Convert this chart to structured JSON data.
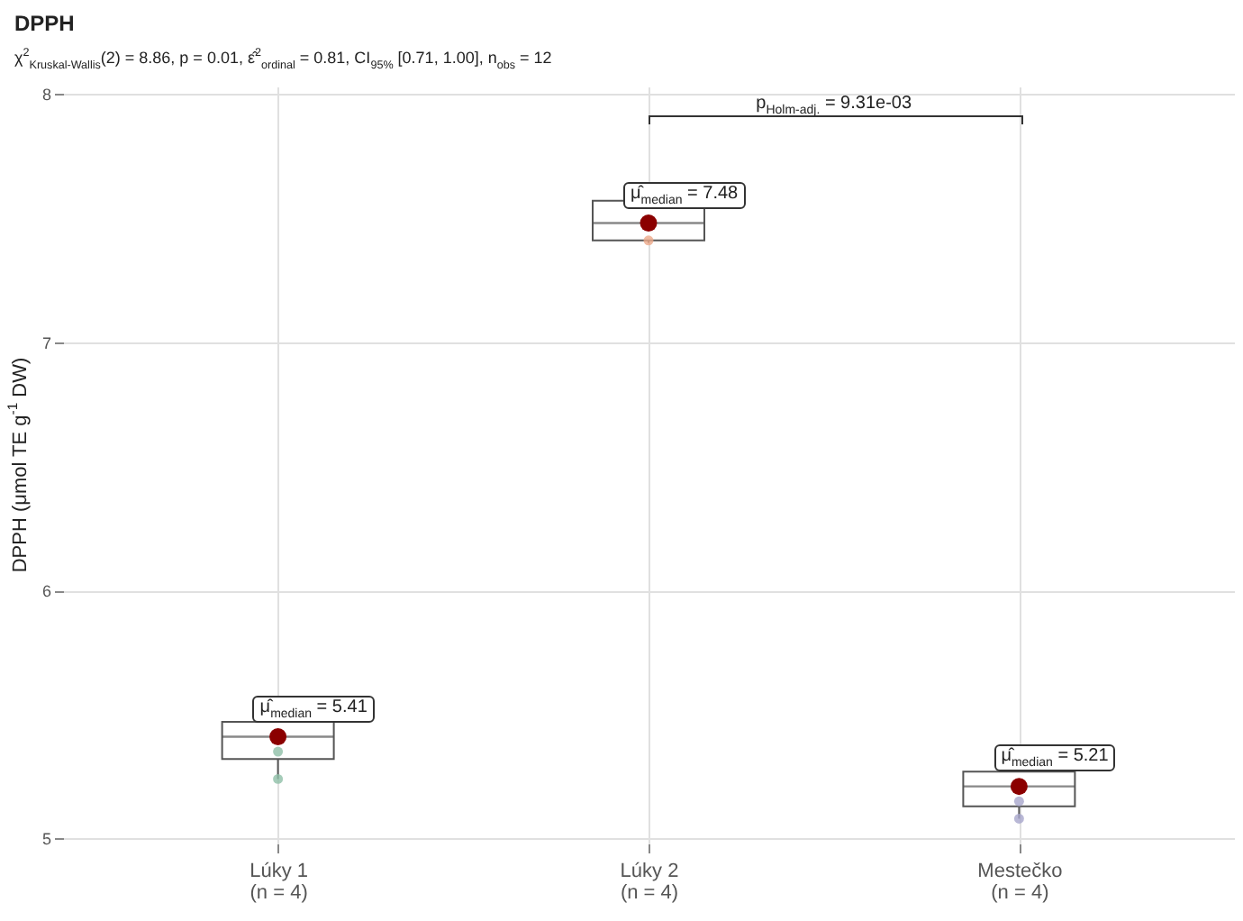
{
  "chart_data": {
    "type": "box",
    "title": "DPPH",
    "subtitle": "χ$^{2}$$_{Kruskal-Wallis}$(2) = 8.86, p = 0.01, ε̂$^{2}$$_{ordinal}$ = 0.81, CI$_{95%}$ [0.71, 1.00], n$_{obs}$ = 12",
    "ylabel": "DPPH (μmol TE g$^{-1}$ DW)",
    "categories": [
      "Lúky 1\n(n = 4)",
      "Lúky 2\n(n = 4)",
      "Mestečko\n(n = 4)"
    ],
    "boxes": [
      {
        "low": 5.24,
        "q1": 5.32,
        "median": 5.41,
        "q3": 5.47,
        "high": 5.47
      },
      {
        "low": 7.4,
        "q1": 7.41,
        "median": 7.48,
        "q3": 7.57,
        "high": 7.57
      },
      {
        "low": 5.08,
        "q1": 5.13,
        "median": 5.21,
        "q3": 5.27,
        "high": 5.27
      }
    ],
    "series": [
      {
        "type": "scatter",
        "x": [
          "Lúky 1\n(n = 4)",
          "Lúky 1\n(n = 4)",
          "Lúky 2\n(n = 4)",
          "Lúky 2\n(n = 4)",
          "Mestečko\n(n = 4)",
          "Mestečko\n(n = 4)"
        ],
        "values": [
          5.35,
          5.24,
          null,
          7.41,
          5.15,
          5.08
        ],
        "colors": [
          "#8fbfa8",
          "#8fbfa8",
          "#eca98a",
          "#eca98a",
          "#a8a6cc",
          "#a8a6cc"
        ]
      },
      {
        "type": "scatter",
        "x": [
          "Lúky 1\n(n = 4)",
          "Lúky 2\n(n = 4)",
          "Mestečko\n(n = 4)"
        ],
        "values": [
          5.41,
          7.48,
          5.21
        ],
        "color": "#8b0000"
      }
    ],
    "ylim": [
      4.98,
      8.03
    ],
    "yticks": [
      5,
      6,
      7,
      8
    ],
    "grid": true,
    "annotations": [
      {
        "text": "μ̂$_{median}$ = 5.41",
        "x": "Lúky 1\n(n = 4)",
        "y": 5.41
      },
      {
        "text": "μ̂$_{median}$ = 7.48",
        "x": "Lúky 2\n(n = 4)",
        "y": 7.48
      },
      {
        "text": "μ̂$_{median}$ = 5.21",
        "x": "Mestečko\n(n = 4)",
        "y": 5.21
      },
      "p$_{Holm-adj.}$ = 9.31e-03"
    ]
  }
}
